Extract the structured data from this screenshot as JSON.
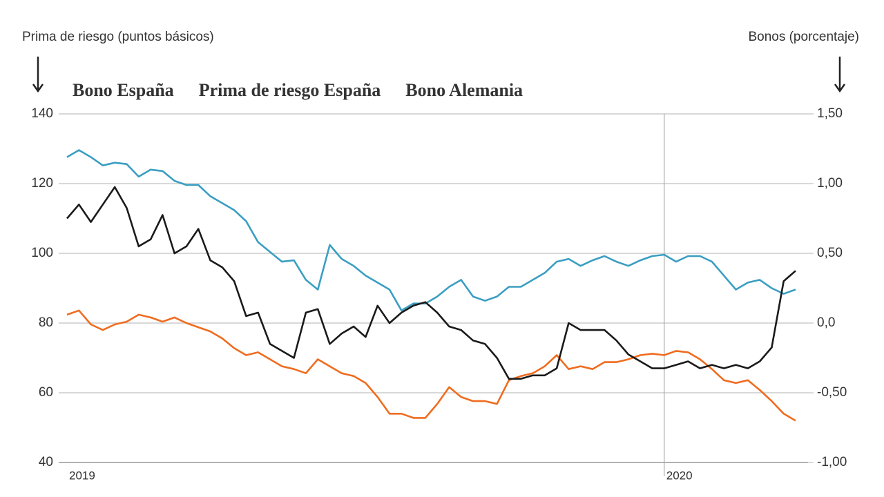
{
  "chart_data": {
    "type": "line",
    "y_label": "Prima de riesgo (puntos básicos)",
    "y2_label": "Bonos (porcentaje)",
    "x": [
      2019,
      2019.02,
      2019.04,
      2019.06,
      2019.08,
      2019.1,
      2019.12,
      2019.14,
      2019.16,
      2019.18,
      2019.2,
      2019.22,
      2019.24,
      2019.26,
      2019.28,
      2019.3,
      2019.32,
      2019.34,
      2019.36,
      2019.38,
      2019.4,
      2019.42,
      2019.44,
      2019.46,
      2019.48,
      2019.5,
      2019.52,
      2019.54,
      2019.56,
      2019.58,
      2019.6,
      2019.62,
      2019.64,
      2019.66,
      2019.68,
      2019.7,
      2019.72,
      2019.74,
      2019.76,
      2019.78,
      2019.8,
      2019.82,
      2019.84,
      2019.86,
      2019.88,
      2019.9,
      2019.92,
      2019.94,
      2019.96,
      2019.98,
      2020,
      2020.02,
      2020.04,
      2020.06,
      2020.08,
      2020.1,
      2020.12,
      2020.14,
      2020.16,
      2020.18,
      2020.2,
      2020.22
    ],
    "xlim": [
      2019,
      2020.22
    ],
    "xticks": [
      2019,
      2020
    ],
    "ylim": [
      40,
      140
    ],
    "yticks": [
      40,
      60,
      80,
      100,
      120,
      140
    ],
    "y2lim": [
      -1,
      1.5
    ],
    "y2ticks": [
      {
        "value": -1,
        "label": "-1,00"
      },
      {
        "value": -0.5,
        "label": "-0,50"
      },
      {
        "value": 0,
        "label": "0,0"
      },
      {
        "value": 0.5,
        "label": "0,50"
      },
      {
        "value": 1,
        "label": "1,00"
      },
      {
        "value": 1.5,
        "label": "1,50"
      }
    ],
    "grid": true,
    "series": [
      {
        "name": "Bono España",
        "color": "#3a9ec2",
        "axis": "y2",
        "values": [
          1.19,
          1.24,
          1.19,
          1.13,
          1.15,
          1.14,
          1.05,
          1.1,
          1.09,
          1.02,
          0.99,
          0.99,
          0.91,
          0.86,
          0.81,
          0.73,
          0.58,
          0.51,
          0.44,
          0.45,
          0.31,
          0.24,
          0.56,
          0.46,
          0.41,
          0.34,
          0.29,
          0.24,
          0.09,
          0.14,
          0.14,
          0.19,
          0.26,
          0.31,
          0.19,
          0.16,
          0.19,
          0.26,
          0.26,
          0.31,
          0.36,
          0.44,
          0.46,
          0.41,
          0.45,
          0.48,
          0.44,
          0.41,
          0.45,
          0.48,
          0.49,
          0.44,
          0.48,
          0.48,
          0.44,
          0.34,
          0.24,
          0.29,
          0.31,
          0.25,
          0.21,
          0.24
        ]
      },
      {
        "name": "Prima de riesgo España",
        "color": "#1a1a1a",
        "values": [
          110,
          114,
          109,
          114,
          119,
          113,
          102,
          104,
          111,
          100,
          102,
          107,
          98,
          96,
          92,
          82,
          83,
          74,
          72,
          70,
          83,
          84,
          74,
          77,
          79,
          76,
          85,
          80,
          83,
          85,
          86,
          83,
          79,
          78,
          75,
          74,
          70,
          64,
          64,
          65,
          65,
          67,
          80,
          78,
          78,
          78,
          75,
          71,
          69,
          67,
          67,
          68,
          69,
          67,
          68,
          67,
          68,
          67,
          69,
          73,
          92,
          95
        ]
      },
      {
        "name": "Bono Alemania",
        "color": "#ef6c1f",
        "axis": "y2",
        "values": [
          0.06,
          0.09,
          -0.01,
          -0.05,
          -0.01,
          0.01,
          0.06,
          0.04,
          0.01,
          0.04,
          0,
          -0.03,
          -0.06,
          -0.11,
          -0.18,
          -0.23,
          -0.21,
          -0.26,
          -0.31,
          -0.33,
          -0.36,
          -0.26,
          -0.31,
          -0.36,
          -0.38,
          -0.43,
          -0.53,
          -0.65,
          -0.65,
          -0.68,
          -0.68,
          -0.58,
          -0.46,
          -0.53,
          -0.56,
          -0.56,
          -0.58,
          -0.41,
          -0.38,
          -0.36,
          -0.31,
          -0.23,
          -0.33,
          -0.31,
          -0.33,
          -0.28,
          -0.28,
          -0.26,
          -0.23,
          -0.22,
          -0.23,
          -0.2,
          -0.21,
          -0.26,
          -0.33,
          -0.41,
          -0.43,
          -0.41,
          -0.48,
          -0.56,
          -0.65,
          -0.7
        ]
      }
    ]
  }
}
